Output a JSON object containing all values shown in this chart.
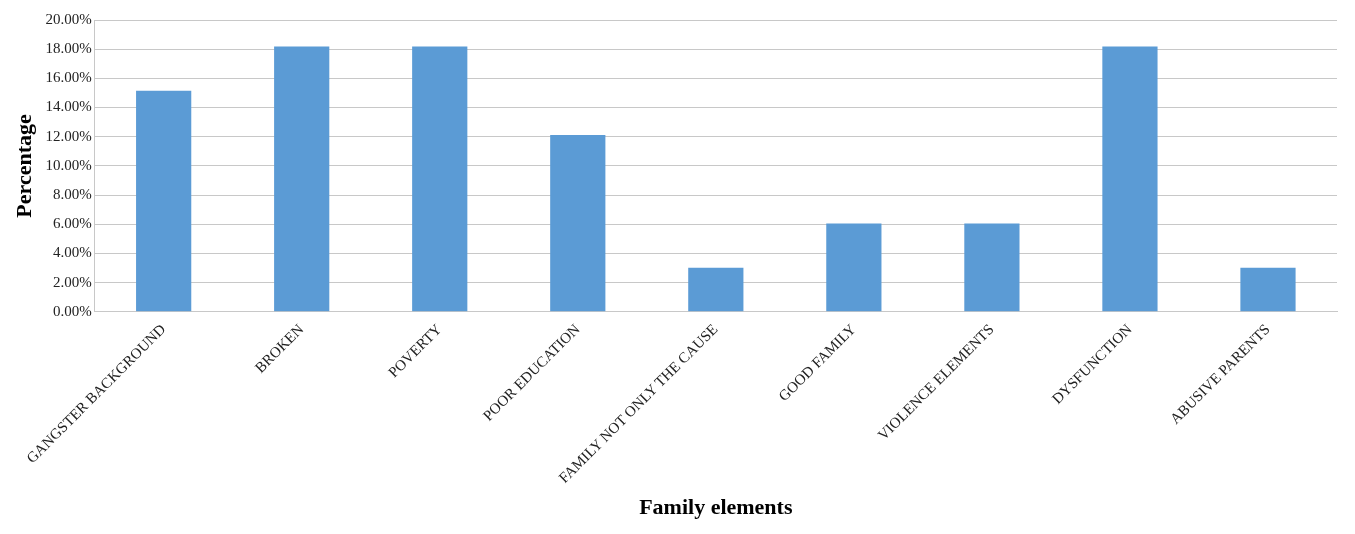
{
  "chart_data": {
    "type": "bar",
    "xlabel": "Family elements",
    "ylabel": "Percentage",
    "categories": [
      "GANGSTER BACKGROUND",
      "BROKEN",
      "POVERTY",
      "POOR EDUCATION",
      "FAMILY NOT ONLY THE CAUSE",
      "GOOD FAMILY",
      "VIOLENCE ELEMENTS",
      "DYSFUNCTION",
      "ABUSIVE PARENTS"
    ],
    "values": [
      15.15,
      18.18,
      18.18,
      12.12,
      3.03,
      6.06,
      6.06,
      18.18,
      3.03
    ],
    "color": "#5b9bd5",
    "ylim": [
      0,
      20
    ],
    "yticks": [
      {
        "value": 0,
        "label": "0.00%"
      },
      {
        "value": 2,
        "label": "2.00%"
      },
      {
        "value": 4,
        "label": "4.00%"
      },
      {
        "value": 6,
        "label": "6.00%"
      },
      {
        "value": 8,
        "label": "8.00%"
      },
      {
        "value": 10,
        "label": "10.00%"
      },
      {
        "value": 12,
        "label": "12.00%"
      },
      {
        "value": 14,
        "label": "14.00%"
      },
      {
        "value": 16,
        "label": "16.00%"
      },
      {
        "value": 18,
        "label": "18.00%"
      },
      {
        "value": 20,
        "label": "20.00%"
      }
    ],
    "grid": "y"
  }
}
